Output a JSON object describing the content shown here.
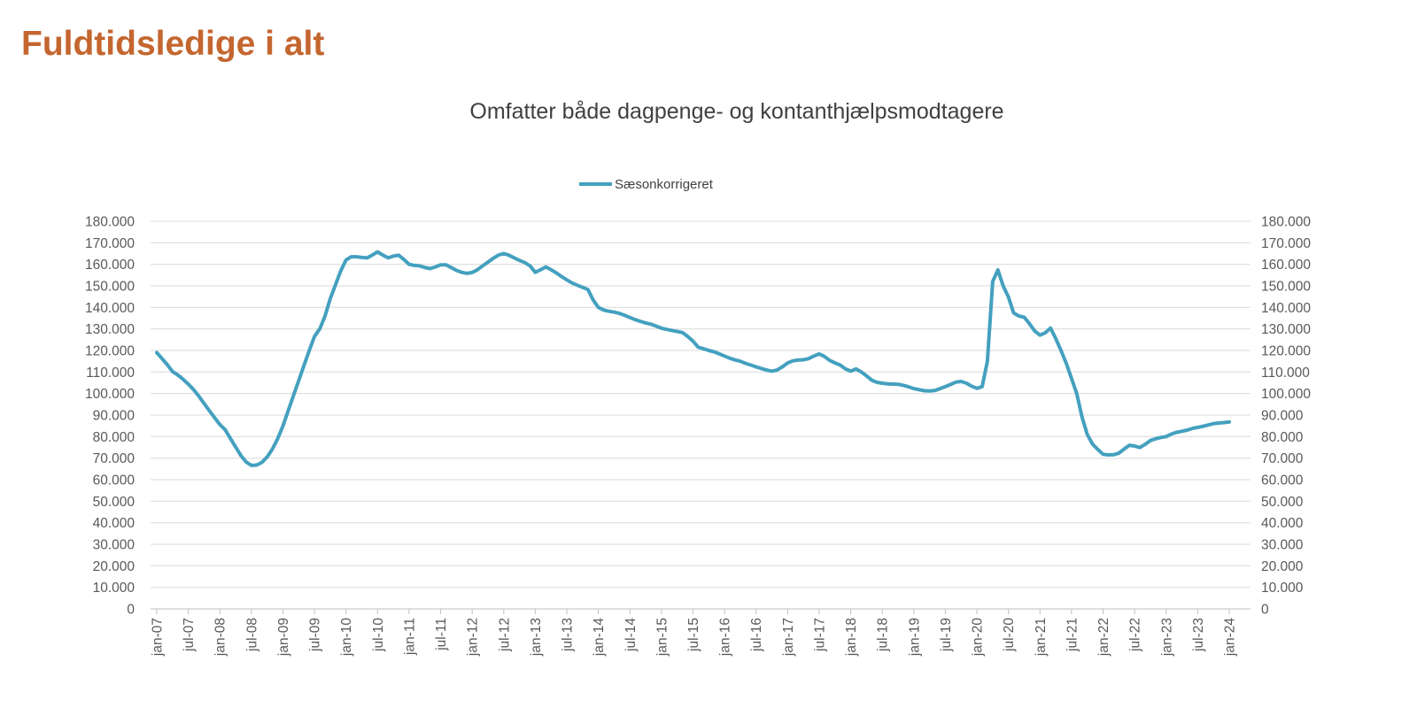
{
  "page": {
    "title": "Fuldtidsledige i alt"
  },
  "chart": {
    "subtitle": "Omfatter både dagpenge- og kontanthjælpsmodtagere",
    "legend": [
      {
        "label": "Sæsonkorrigeret",
        "color": "#44A0BF"
      }
    ]
  },
  "colors": {
    "title": "#C4662F",
    "subtitle_text": "#404040",
    "axis_text": "#595959",
    "gridline": "#D9D9D9",
    "axis_line": "#BFBFBF",
    "series": "#44A0BF"
  },
  "chart_data": {
    "type": "line",
    "title": "Omfatter både dagpenge- og kontanthjælpsmodtagere",
    "legend_position": "top",
    "grid": "horizontal",
    "ylim": [
      0,
      180000
    ],
    "y_ticks": [
      0,
      10000,
      20000,
      30000,
      40000,
      50000,
      60000,
      70000,
      80000,
      90000,
      100000,
      110000,
      120000,
      130000,
      140000,
      150000,
      160000,
      170000,
      180000
    ],
    "y_axis_sides": [
      "left",
      "right"
    ],
    "y_tick_label_format": "dot-thousands",
    "x_tick_labels": [
      "jan-07",
      "jul-07",
      "jan-08",
      "jul-08",
      "jan-09",
      "jul-09",
      "jan-10",
      "jul-10",
      "jan-11",
      "jul-11",
      "jan-12",
      "jul-12",
      "jan-13",
      "jul-13",
      "jan-14",
      "jul-14",
      "jan-15",
      "jul-15",
      "jan-16",
      "jul-16",
      "jan-17",
      "jul-17",
      "jan-18",
      "jul-18",
      "jan-19",
      "jul-19",
      "jan-20",
      "jul-20",
      "jan-21",
      "jul-21",
      "jan-22",
      "jul-22",
      "jan-23",
      "jul-23",
      "jan-24"
    ],
    "x_months_per_tick": 6,
    "frequency": "monthly",
    "x_start": "jan-07",
    "x_end": "jan-24",
    "series": [
      {
        "name": "Sæsonkorrigeret",
        "color": "#44A0BF",
        "values": [
          119000,
          116200,
          113400,
          110200,
          108600,
          106600,
          104400,
          101800,
          98800,
          95400,
          92000,
          88800,
          85600,
          83200,
          79200,
          75200,
          71200,
          68200,
          66600,
          66800,
          68000,
          70600,
          74200,
          79000,
          85000,
          92000,
          99000,
          106000,
          113000,
          120000,
          126500,
          130000,
          136000,
          144000,
          150500,
          157000,
          162000,
          163500,
          163500,
          163200,
          163000,
          164300,
          165800,
          164300,
          163000,
          163800,
          164200,
          162300,
          160000,
          159500,
          159300,
          158500,
          158000,
          158800,
          159800,
          159800,
          158500,
          157200,
          156300,
          155800,
          156200,
          157500,
          159300,
          161000,
          162800,
          164300,
          165000,
          164200,
          163000,
          161800,
          160800,
          159300,
          156300,
          157500,
          158800,
          157500,
          156000,
          154300,
          152800,
          151300,
          150300,
          149300,
          148300,
          143500,
          140000,
          138800,
          138200,
          137800,
          137200,
          136300,
          135300,
          134300,
          133500,
          132800,
          132200,
          131300,
          130300,
          129800,
          129300,
          128800,
          128300,
          126500,
          124300,
          121500,
          120800,
          120000,
          119400,
          118400,
          117400,
          116400,
          115600,
          115000,
          114000,
          113200,
          112400,
          111600,
          110900,
          110400,
          110900,
          112400,
          114200,
          115200,
          115500,
          115700,
          116200,
          117400,
          118400,
          117200,
          115400,
          114200,
          113200,
          111400,
          110400,
          111400,
          110000,
          108200,
          106200,
          105200,
          104800,
          104500,
          104400,
          104300,
          103800,
          103100,
          102300,
          101800,
          101300,
          101200,
          101400,
          102300,
          103200,
          104200,
          105300,
          105600,
          104800,
          103400,
          102400,
          103200,
          115000,
          152000,
          157400,
          150000,
          144800,
          137400,
          136000,
          135400,
          132400,
          129000,
          127100,
          128200,
          130400,
          125500,
          120000,
          114000,
          107000,
          100000,
          89000,
          81000,
          76500,
          74000,
          71800,
          71500,
          71600,
          72300,
          74200,
          76000,
          75600,
          74900,
          76400,
          78200,
          79000,
          79600,
          80000,
          81200,
          82000,
          82500,
          83000,
          83800,
          84300,
          84800,
          85400,
          86000,
          86300,
          86500,
          86800
        ]
      }
    ]
  }
}
